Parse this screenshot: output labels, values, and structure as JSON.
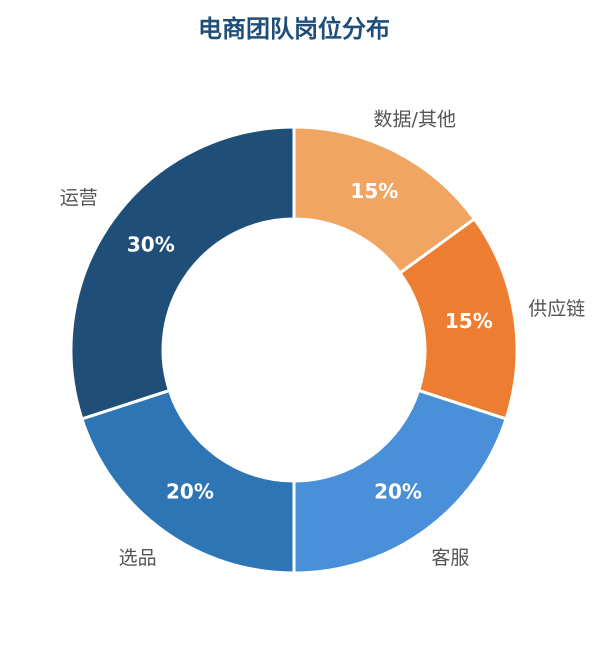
{
  "chart_data": {
    "type": "donut",
    "title": "电商团队岗位分布",
    "categories": [
      "数据/其他",
      "供应链",
      "客服",
      "选品",
      "运营"
    ],
    "values": [
      15,
      15,
      20,
      20,
      30
    ],
    "value_labels": [
      "15%",
      "15%",
      "20%",
      "20%",
      "30%"
    ],
    "colors": [
      "#f0a562",
      "#ed7d31",
      "#4a90d9",
      "#2e75b6",
      "#1f4e79"
    ]
  }
}
